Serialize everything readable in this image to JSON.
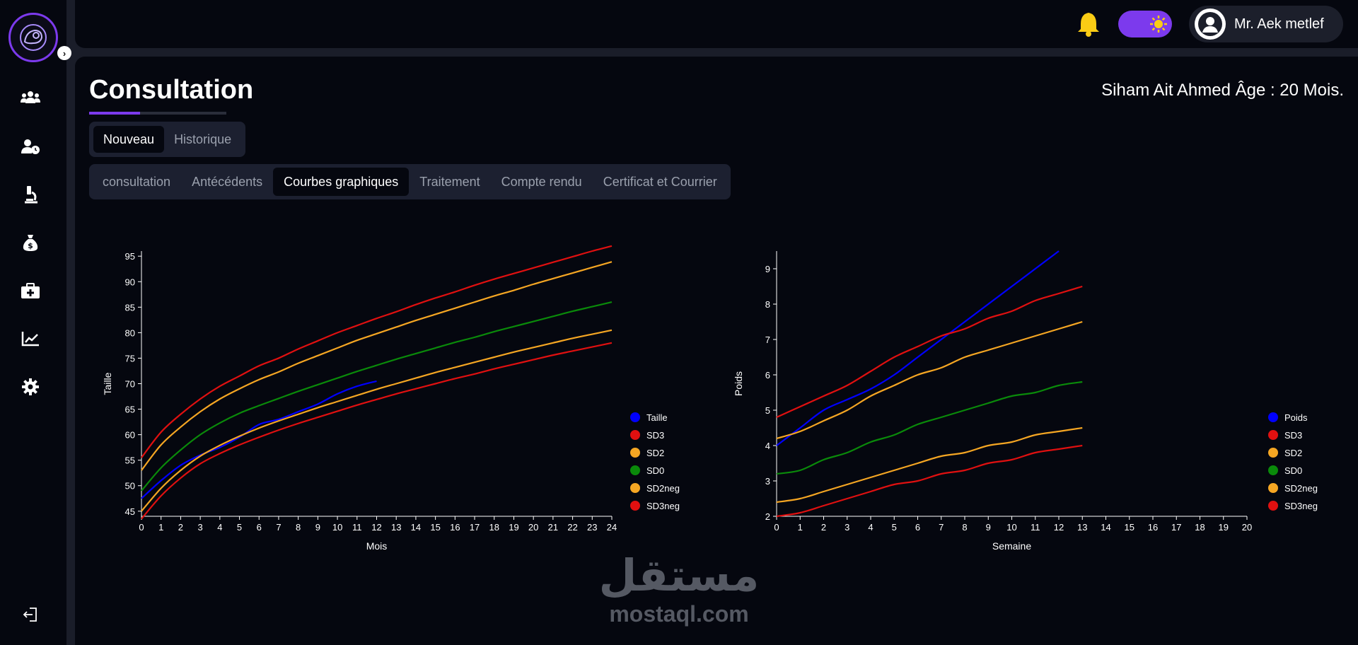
{
  "user": {
    "name": "Mr. Aek metlef"
  },
  "page": {
    "title": "Consultation",
    "patient_info": "Siham Ait Ahmed Âge : 20 Mois."
  },
  "mode_tabs": [
    {
      "label": "Nouveau",
      "active": true
    },
    {
      "label": "Historique",
      "active": false
    }
  ],
  "sub_tabs": [
    {
      "label": "consultation",
      "active": false
    },
    {
      "label": "Antécédents",
      "active": false
    },
    {
      "label": "Courbes graphiques",
      "active": true
    },
    {
      "label": "Traitement",
      "active": false
    },
    {
      "label": "Compte rendu",
      "active": false
    },
    {
      "label": "Certificat et Courrier",
      "active": false
    }
  ],
  "sidebar": {
    "icons": [
      "users-icon",
      "user-clock-icon",
      "microscope-icon",
      "money-bag-icon",
      "medical-kit-icon",
      "chart-line-icon",
      "gear-icon"
    ],
    "logout_icon": "logout-icon"
  },
  "watermark": {
    "arabic": "مستقل",
    "latin": "mostaql.com"
  },
  "colors": {
    "accent": "#7c3aed",
    "bell": "#facc15",
    "blue": "#0000ff",
    "red": "#e01010",
    "orange": "#f5a623",
    "green": "#0a8a0a"
  },
  "chart_data": [
    {
      "type": "line",
      "xlabel": "Mois",
      "ylabel": "Taille",
      "xlim": [
        0,
        24
      ],
      "ylim": [
        44,
        96
      ],
      "xticks": [
        0,
        1,
        2,
        3,
        4,
        5,
        6,
        7,
        8,
        9,
        10,
        11,
        12,
        13,
        14,
        15,
        16,
        17,
        18,
        19,
        20,
        21,
        22,
        23,
        24
      ],
      "yticks": [
        45,
        50,
        55,
        60,
        65,
        70,
        75,
        80,
        85,
        90,
        95
      ],
      "legend_position": "right",
      "series": [
        {
          "name": "Taille",
          "color": "#0000ff",
          "x": [
            0,
            1,
            2,
            3,
            4,
            5,
            6,
            7,
            8,
            9,
            10,
            11,
            12
          ],
          "y": [
            47.5,
            51,
            54,
            56,
            57.5,
            59.5,
            62,
            63,
            64.5,
            66,
            68,
            69.5,
            70.5
          ]
        },
        {
          "name": "SD3",
          "color": "#e01010",
          "x": [
            0,
            1,
            2,
            3,
            4,
            5,
            6,
            7,
            8,
            9,
            10,
            11,
            12,
            13,
            14,
            15,
            16,
            17,
            18,
            19,
            20,
            21,
            22,
            23,
            24
          ],
          "y": [
            55.5,
            60.5,
            64,
            67,
            69.5,
            71.5,
            73.5,
            75,
            76.8,
            78.4,
            80,
            81.4,
            82.8,
            84.1,
            85.5,
            86.8,
            88,
            89.3,
            90.5,
            91.6,
            92.7,
            93.8,
            94.9,
            96,
            97
          ]
        },
        {
          "name": "SD2",
          "color": "#f5a623",
          "x": [
            0,
            1,
            2,
            3,
            4,
            5,
            6,
            7,
            8,
            9,
            10,
            11,
            12,
            13,
            14,
            15,
            16,
            17,
            18,
            19,
            20,
            21,
            22,
            23,
            24
          ],
          "y": [
            53,
            58,
            61.5,
            64.5,
            67,
            69,
            70.8,
            72.3,
            74,
            75.5,
            77,
            78.5,
            79.8,
            81.1,
            82.4,
            83.6,
            84.8,
            86,
            87.2,
            88.3,
            89.5,
            90.6,
            91.7,
            92.8,
            93.9
          ]
        },
        {
          "name": "SD0",
          "color": "#0a8a0a",
          "x": [
            0,
            1,
            2,
            3,
            4,
            5,
            6,
            7,
            8,
            9,
            10,
            11,
            12,
            13,
            14,
            15,
            16,
            17,
            18,
            19,
            20,
            21,
            22,
            23,
            24
          ],
          "y": [
            49,
            53.5,
            57,
            60,
            62.3,
            64.2,
            65.7,
            67.1,
            68.5,
            69.8,
            71.1,
            72.4,
            73.6,
            74.8,
            75.9,
            77,
            78.1,
            79.1,
            80.2,
            81.2,
            82.2,
            83.2,
            84.2,
            85.1,
            86
          ]
        },
        {
          "name": "SD2neg",
          "color": "#f5a623",
          "x": [
            0,
            1,
            2,
            3,
            4,
            5,
            6,
            7,
            8,
            9,
            10,
            11,
            12,
            13,
            14,
            15,
            16,
            17,
            18,
            19,
            20,
            21,
            22,
            23,
            24
          ],
          "y": [
            45,
            49.5,
            53,
            55.8,
            57.9,
            59.7,
            61.3,
            62.7,
            64,
            65.3,
            66.5,
            67.7,
            68.9,
            70,
            71.1,
            72.2,
            73.2,
            74.2,
            75.2,
            76.2,
            77.1,
            78,
            78.9,
            79.7,
            80.5
          ]
        },
        {
          "name": "SD3neg",
          "color": "#e01010",
          "x": [
            0,
            1,
            2,
            3,
            4,
            5,
            6,
            7,
            8,
            9,
            10,
            11,
            12,
            13,
            14,
            15,
            16,
            17,
            18,
            19,
            20,
            21,
            22,
            23,
            24
          ],
          "y": [
            43.5,
            48,
            51.5,
            54.3,
            56.3,
            58,
            59.5,
            60.9,
            62.2,
            63.4,
            64.6,
            65.8,
            66.9,
            68,
            69,
            70,
            71,
            71.9,
            72.9,
            73.8,
            74.7,
            75.6,
            76.4,
            77.2,
            78
          ]
        }
      ]
    },
    {
      "type": "line",
      "xlabel": "Semaine",
      "ylabel": "Poids",
      "xlim": [
        0,
        20
      ],
      "ylim": [
        2,
        9.5
      ],
      "xticks": [
        0,
        1,
        2,
        3,
        4,
        5,
        6,
        7,
        8,
        9,
        10,
        11,
        12,
        13,
        14,
        15,
        16,
        17,
        18,
        19,
        20
      ],
      "yticks": [
        2,
        3,
        4,
        5,
        6,
        7,
        8,
        9
      ],
      "legend_position": "right",
      "series": [
        {
          "name": "Poids",
          "color": "#0000ff",
          "x": [
            0,
            1,
            2,
            3,
            4,
            5,
            6,
            7,
            8,
            9,
            10,
            11,
            12
          ],
          "y": [
            4,
            4.5,
            5,
            5.3,
            5.6,
            6,
            6.5,
            7,
            7.5,
            8,
            8.5,
            9,
            9.5
          ]
        },
        {
          "name": "SD3",
          "color": "#e01010",
          "x": [
            0,
            1,
            2,
            3,
            4,
            5,
            6,
            7,
            8,
            9,
            10,
            11,
            12,
            13
          ],
          "y": [
            4.8,
            5.1,
            5.4,
            5.7,
            6.1,
            6.5,
            6.8,
            7.1,
            7.3,
            7.6,
            7.8,
            8.1,
            8.3,
            8.5
          ]
        },
        {
          "name": "SD2",
          "color": "#f5a623",
          "x": [
            0,
            1,
            2,
            3,
            4,
            5,
            6,
            7,
            8,
            9,
            10,
            11,
            12,
            13
          ],
          "y": [
            4.2,
            4.4,
            4.7,
            5,
            5.4,
            5.7,
            6,
            6.2,
            6.5,
            6.7,
            6.9,
            7.1,
            7.3,
            7.5
          ]
        },
        {
          "name": "SD0",
          "color": "#0a8a0a",
          "x": [
            0,
            1,
            2,
            3,
            4,
            5,
            6,
            7,
            8,
            9,
            10,
            11,
            12,
            13
          ],
          "y": [
            3.2,
            3.3,
            3.6,
            3.8,
            4.1,
            4.3,
            4.6,
            4.8,
            5,
            5.2,
            5.4,
            5.5,
            5.7,
            5.8
          ]
        },
        {
          "name": "SD2neg",
          "color": "#f5a623",
          "x": [
            0,
            1,
            2,
            3,
            4,
            5,
            6,
            7,
            8,
            9,
            10,
            11,
            12,
            13
          ],
          "y": [
            2.4,
            2.5,
            2.7,
            2.9,
            3.1,
            3.3,
            3.5,
            3.7,
            3.8,
            4,
            4.1,
            4.3,
            4.4,
            4.5
          ]
        },
        {
          "name": "SD3neg",
          "color": "#e01010",
          "x": [
            0,
            1,
            2,
            3,
            4,
            5,
            6,
            7,
            8,
            9,
            10,
            11,
            12,
            13
          ],
          "y": [
            2,
            2.1,
            2.3,
            2.5,
            2.7,
            2.9,
            3,
            3.2,
            3.3,
            3.5,
            3.6,
            3.8,
            3.9,
            4
          ]
        }
      ]
    }
  ]
}
